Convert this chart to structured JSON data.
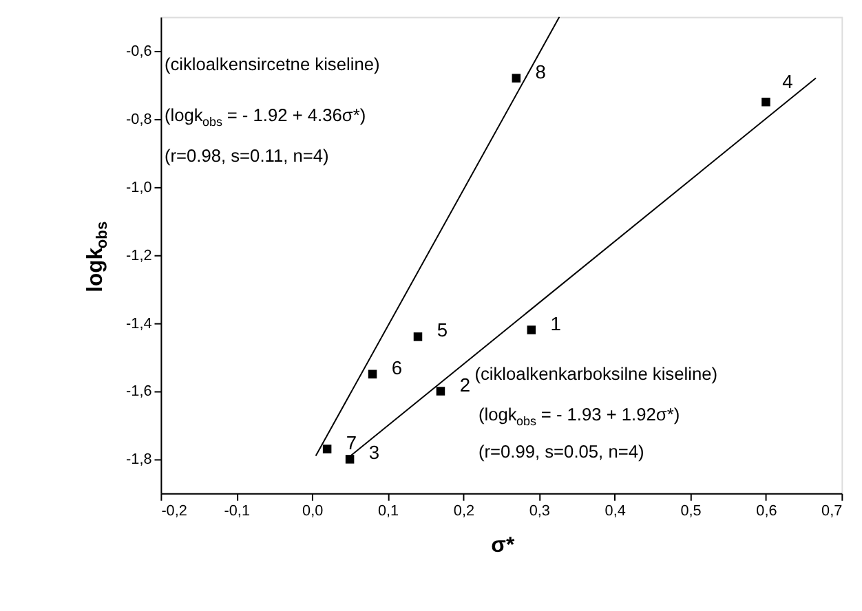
{
  "chart_data": {
    "type": "scatter",
    "xlabel": "σ*",
    "ylabel": "logk$_{obs}$",
    "xlim": [
      -0.2,
      0.7
    ],
    "ylim": [
      -1.9,
      -0.5
    ],
    "xticks": [
      {
        "value": -0.2,
        "label": "-0,2"
      },
      {
        "value": -0.1,
        "label": "-0,1"
      },
      {
        "value": 0.0,
        "label": "0,0"
      },
      {
        "value": 0.1,
        "label": "0,1"
      },
      {
        "value": 0.2,
        "label": "0,2"
      },
      {
        "value": 0.3,
        "label": "0,3"
      },
      {
        "value": 0.4,
        "label": "0,4"
      },
      {
        "value": 0.5,
        "label": "0,5"
      },
      {
        "value": 0.6,
        "label": "0,6"
      },
      {
        "value": 0.7,
        "label": "0,7"
      }
    ],
    "yticks": [
      {
        "value": -1.8,
        "label": "-1,8"
      },
      {
        "value": -1.6,
        "label": "-1,6"
      },
      {
        "value": -1.4,
        "label": "-1,4"
      },
      {
        "value": -1.2,
        "label": "-1,2"
      },
      {
        "value": -1.0,
        "label": "-1,0"
      },
      {
        "value": -0.8,
        "label": "-0,8"
      },
      {
        "value": -0.6,
        "label": "-0,6"
      }
    ],
    "grid": false,
    "series": [
      {
        "marker": "square",
        "color": "#000000",
        "x": [
          0.29,
          0.17,
          0.05,
          0.6,
          0.14,
          0.08,
          0.02,
          0.27
        ],
        "values": [
          -1.42,
          -1.6,
          -1.8,
          -0.75,
          -1.44,
          -1.55,
          -1.77,
          -0.68
        ]
      },
      {
        "type": "line",
        "color": "#000000",
        "x": [
          0.005,
          0.327
        ],
        "values": [
          -1.79,
          -0.5
        ]
      },
      {
        "type": "line",
        "color": "#000000",
        "x": [
          0.051,
          0.666
        ],
        "values": [
          -1.79,
          -0.68
        ]
      }
    ],
    "annotations": [
      {
        "text": "1",
        "x": 0.29,
        "y": -1.42
      },
      {
        "text": "2",
        "x": 0.17,
        "y": -1.6
      },
      {
        "text": "3",
        "x": 0.05,
        "y": -1.8
      },
      {
        "text": "4",
        "x": 0.6,
        "y": -0.75
      },
      {
        "text": "5",
        "x": 0.14,
        "y": -1.44
      },
      {
        "text": "6",
        "x": 0.08,
        "y": -1.55
      },
      {
        "text": "7",
        "x": 0.02,
        "y": -1.77
      },
      {
        "text": "8",
        "x": 0.27,
        "y": -0.68
      },
      "(cikloalkensircetne kiseline)",
      "(logk$_{obs}$ = - 1.92 + 4.36σ*)",
      "(r=0.98, s=0.11, n=4)",
      "(cikloalkenkarboksilne kiseline)",
      "(logk$_{obs}$ = - 1.93 + 1.92σ*)",
      "(r=0.99, s=0.05, n=4)"
    ]
  }
}
